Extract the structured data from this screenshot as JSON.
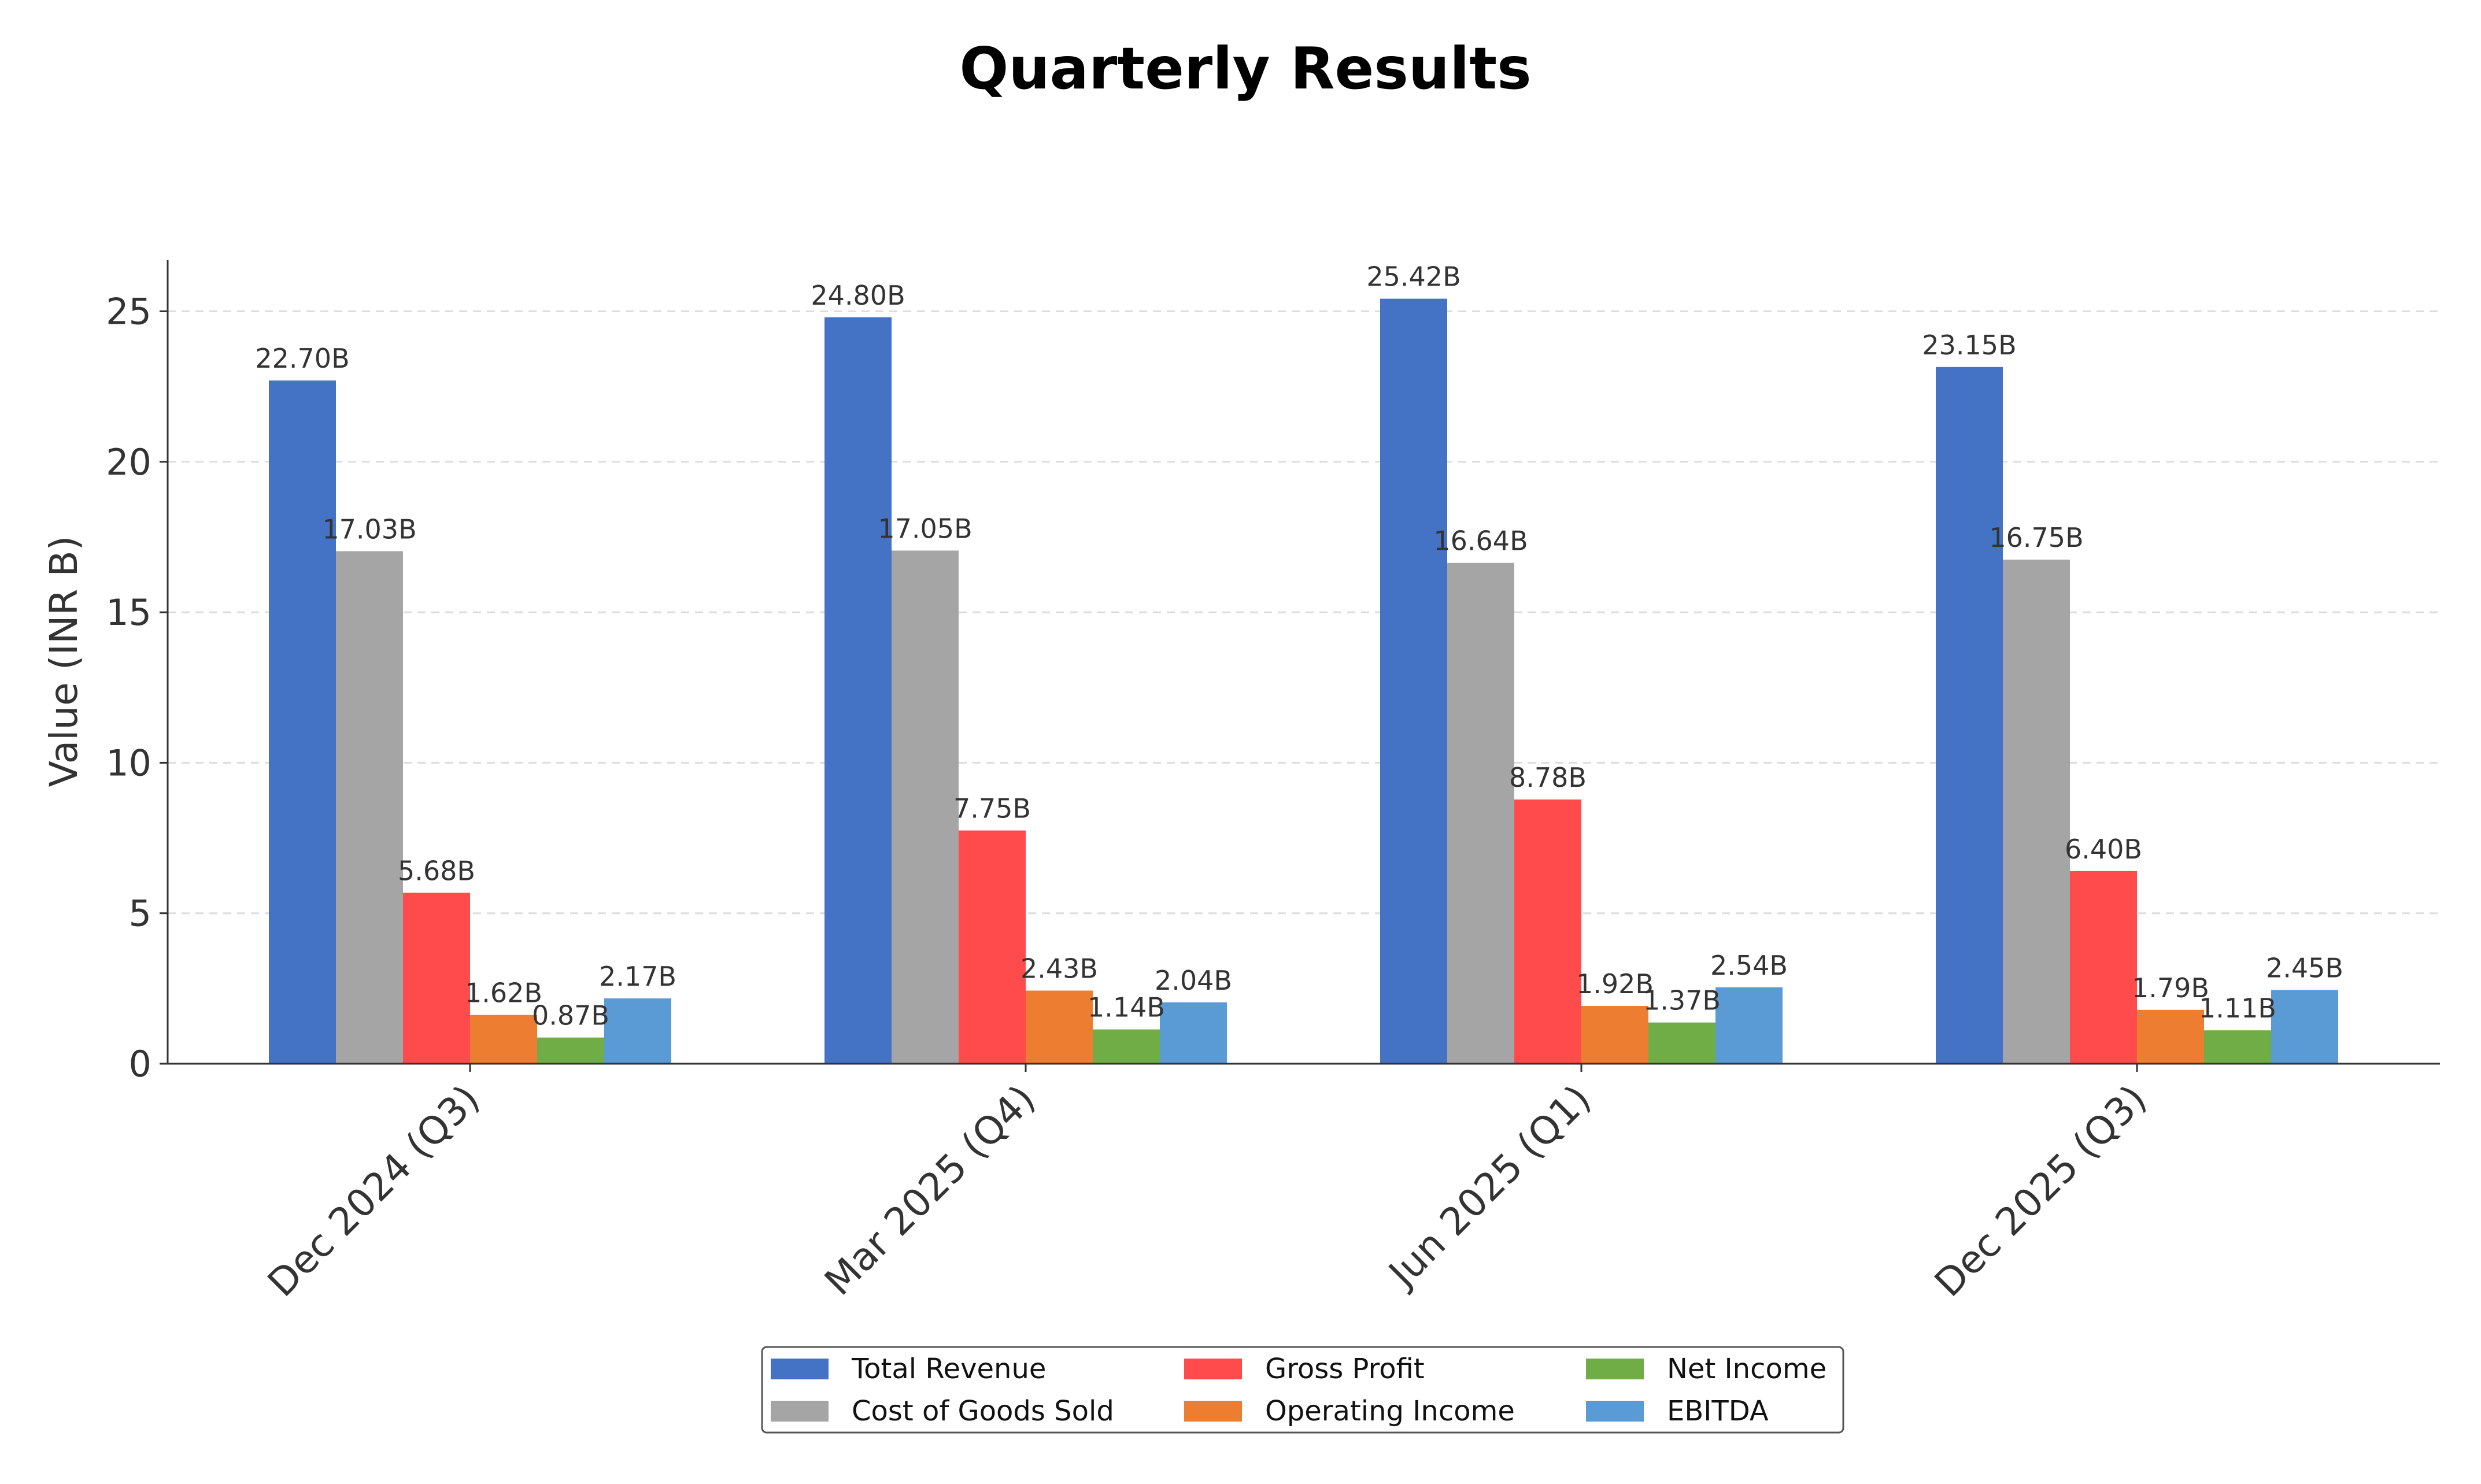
{
  "chart_data": {
    "type": "bar",
    "title": "Quarterly Results",
    "xlabel": "",
    "ylabel": "Value (INR B)",
    "ylim": [
      0,
      26.7
    ],
    "yticks": [
      0,
      5,
      10,
      15,
      20,
      25
    ],
    "grid": true,
    "legend_position": "bottom-center",
    "value_label_suffix": "B",
    "categories": [
      "Dec 2024 (Q3)",
      "Mar 2025 (Q4)",
      "Jun 2025 (Q1)",
      "Dec 2025 (Q3)"
    ],
    "series": [
      {
        "name": "Total Revenue",
        "color": "#4472C4",
        "values": [
          22.7,
          24.8,
          25.42,
          23.15
        ]
      },
      {
        "name": "Cost of Goods Sold",
        "color": "#A5A5A5",
        "values": [
          17.03,
          17.05,
          16.64,
          16.75
        ]
      },
      {
        "name": "Gross Profit",
        "color": "#FF4B4B",
        "values": [
          5.68,
          7.75,
          8.78,
          6.4
        ]
      },
      {
        "name": "Operating Income",
        "color": "#ED7D31",
        "values": [
          1.62,
          2.43,
          1.92,
          1.79
        ]
      },
      {
        "name": "Net Income",
        "color": "#70AD47",
        "values": [
          0.87,
          1.14,
          1.37,
          1.11
        ]
      },
      {
        "name": "EBITDA",
        "color": "#5B9BD5",
        "values": [
          2.17,
          2.04,
          2.54,
          2.45
        ]
      }
    ]
  }
}
